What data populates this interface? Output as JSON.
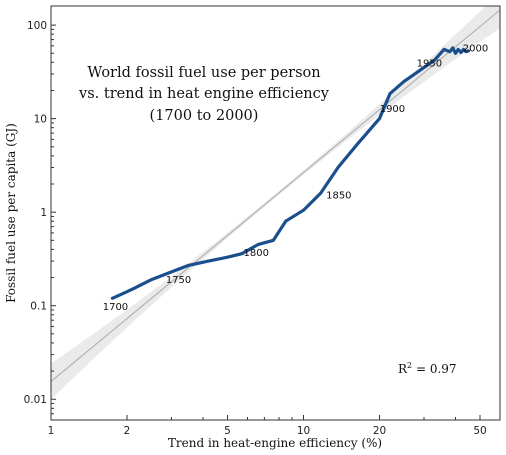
{
  "chart_data": {
    "type": "line",
    "title_lines": [
      "World fossil fuel use per person",
      "vs. trend in heat engine efficiency",
      "(1700 to 2000)"
    ],
    "xlabel": "Trend in heat-engine efficiency (%)",
    "ylabel": "Fossil fuel use per capita (GJ)",
    "x_scale": "log",
    "y_scale": "log",
    "xlim": [
      1,
      60
    ],
    "ylim": [
      0.006,
      160
    ],
    "x_ticks": [
      1,
      2,
      5,
      10,
      20,
      50
    ],
    "x_tick_labels": [
      "1",
      "2",
      "5",
      "10",
      "20",
      "50"
    ],
    "y_ticks": [
      0.01,
      0.1,
      1,
      10,
      100
    ],
    "y_tick_labels": [
      "0.01",
      "0.1",
      "1",
      "10",
      "100"
    ],
    "grid": false,
    "series": [
      {
        "color": "#1a4e8c",
        "x": [
          1.75,
          2.1,
          2.5,
          3.0,
          3.5,
          4.2,
          5.0,
          5.7,
          6.6,
          7.6,
          8.5,
          10.0,
          11.7,
          13.7,
          16.5,
          20.0,
          22.0,
          25.0,
          29.0,
          33.0,
          36.0,
          38.0,
          39.0,
          40.0,
          41.0,
          42.0,
          43.0,
          44.0,
          45.0
        ],
        "y": [
          0.12,
          0.15,
          0.19,
          0.23,
          0.27,
          0.3,
          0.33,
          0.36,
          0.45,
          0.5,
          0.8,
          1.05,
          1.6,
          3.0,
          5.5,
          10.0,
          18.5,
          25.0,
          33.0,
          42.0,
          55.0,
          52.0,
          57.0,
          50.0,
          55.0,
          51.0,
          55.0,
          52.0,
          53.0
        ]
      }
    ],
    "trend_line": {
      "color": "#aaaaaa",
      "band_color": "#d9d9d9",
      "x": [
        1,
        60
      ],
      "y": [
        0.0155,
        145
      ]
    },
    "annotations": [
      {
        "text": "1700",
        "x": 1.8,
        "y": 0.09
      },
      {
        "text": "1750",
        "x": 3.2,
        "y": 0.175
      },
      {
        "text": "1800",
        "x": 6.5,
        "y": 0.34
      },
      {
        "text": "1850",
        "x": 13.8,
        "y": 1.4
      },
      {
        "text": "1900",
        "x": 22.5,
        "y": 11.8
      },
      {
        "text": "1950",
        "x": 31.5,
        "y": 36
      },
      {
        "text": "2000",
        "x": 48,
        "y": 52
      }
    ],
    "r2_label": {
      "main": "R",
      "sup": "2",
      "rest": " = 0.97"
    }
  }
}
